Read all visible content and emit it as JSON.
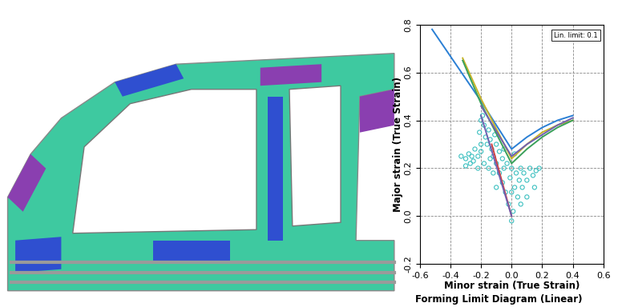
{
  "chart_data": {
    "type": "line",
    "title": "Forming Limit Diagram (Linear)",
    "x_label": "Minor strain (True Strain)",
    "y_label": "Major strain (True Strain)",
    "annotations": [
      "Lin. limit: 0.1"
    ],
    "xlim": [
      -0.6,
      0.6
    ],
    "xticks": [
      -0.6,
      -0.4,
      -0.2,
      0.0,
      0.2,
      0.4,
      0.6
    ],
    "ylim": [
      -0.2,
      0.8
    ],
    "yticks": [
      -0.2,
      0.0,
      0.2,
      0.4,
      0.6,
      0.8
    ],
    "grid": true,
    "series": [
      {
        "type": "line",
        "color": "#2a7fd4",
        "line_style": "solid",
        "x": [
          -0.52,
          -0.2,
          0.0,
          0.1,
          0.2,
          0.3,
          0.4
        ],
        "values": [
          0.78,
          0.48,
          0.28,
          0.33,
          0.37,
          0.4,
          0.42
        ]
      },
      {
        "type": "line",
        "color": "#c8b428",
        "line_style": "solid",
        "x": [
          -0.32,
          -0.2,
          0.0,
          0.1,
          0.2,
          0.3,
          0.4
        ],
        "values": [
          0.66,
          0.49,
          0.24,
          0.3,
          0.35,
          0.38,
          0.4
        ]
      },
      {
        "type": "line",
        "color": "#3aa05a",
        "line_style": "solid",
        "x": [
          -0.32,
          -0.2,
          0.0,
          0.1,
          0.2,
          0.3,
          0.4
        ],
        "values": [
          0.65,
          0.47,
          0.22,
          0.28,
          0.33,
          0.37,
          0.4
        ]
      },
      {
        "type": "line",
        "color": "#7060b0",
        "line_style": "solid",
        "x": [
          -0.2,
          0.0,
          0.1,
          0.2,
          0.3,
          0.4
        ],
        "values": [
          0.46,
          0.25,
          0.3,
          0.34,
          0.38,
          0.41
        ]
      },
      {
        "type": "line",
        "color": "#d04040",
        "line_style": "solid",
        "x": [
          0.0,
          -0.13
        ],
        "values": [
          0.0,
          0.3
        ]
      },
      {
        "type": "line",
        "color": "#7060b0",
        "line_style": "solid",
        "x": [
          0.0,
          -0.2
        ],
        "values": [
          0.0,
          0.42
        ]
      },
      {
        "type": "scatter",
        "color": "#3cc0c0",
        "marker": "circle",
        "x": [
          -0.33,
          -0.3,
          -0.28,
          -0.26,
          -0.25,
          -0.22,
          -0.2,
          -0.2,
          -0.21,
          -0.2,
          -0.19,
          -0.18,
          -0.17,
          -0.16,
          -0.15,
          -0.14,
          -0.13,
          -0.12,
          -0.1,
          -0.1,
          -0.08,
          -0.08,
          -0.06,
          -0.06,
          -0.05,
          -0.04,
          -0.03,
          -0.02,
          -0.01,
          0.0,
          0.0,
          0.0,
          0.01,
          0.02,
          0.03,
          0.04,
          0.05,
          0.06,
          0.07,
          0.08,
          0.1,
          0.12,
          0.14,
          0.16,
          0.18,
          0.15,
          0.1,
          0.06,
          -0.22,
          -0.18,
          -0.15,
          -0.12,
          -0.1,
          -0.24,
          -0.27,
          -0.3,
          -0.14,
          -0.11,
          -0.05,
          0.02
        ],
        "values": [
          0.25,
          0.24,
          0.26,
          0.25,
          0.23,
          0.25,
          0.27,
          0.3,
          0.35,
          0.4,
          0.42,
          0.38,
          0.33,
          0.3,
          0.36,
          0.32,
          0.28,
          0.25,
          0.3,
          0.22,
          0.27,
          0.18,
          0.24,
          0.14,
          0.2,
          0.1,
          0.22,
          0.05,
          0.16,
          -0.02,
          0.1,
          0.2,
          0.02,
          0.12,
          0.18,
          0.08,
          0.15,
          0.2,
          0.12,
          0.18,
          0.15,
          0.2,
          0.17,
          0.19,
          0.2,
          0.12,
          0.08,
          0.05,
          0.2,
          0.22,
          0.2,
          0.18,
          0.12,
          0.28,
          0.22,
          0.21,
          0.24,
          0.34,
          0.28,
          0.26
        ]
      }
    ]
  }
}
